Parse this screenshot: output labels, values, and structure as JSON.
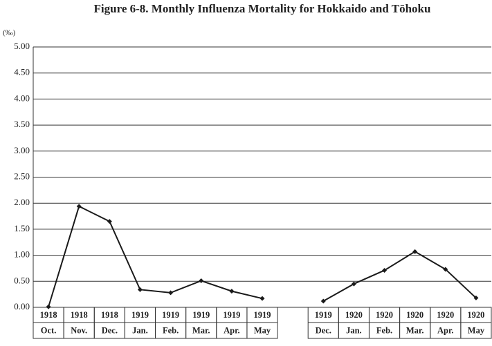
{
  "chart_data": {
    "type": "line",
    "title": "Figure 6-8. Monthly Influenza Mortality for Hokkaido and Tōhoku",
    "y_unit": "(‰)",
    "years": [
      "1918",
      "1918",
      "1918",
      "1919",
      "1919",
      "1919",
      "1919",
      "1919",
      null,
      "1919",
      "1920",
      "1920",
      "1920",
      "1920",
      "1920"
    ],
    "categories": [
      "Oct.",
      "Nov.",
      "Dec.",
      "Jan.",
      "Feb.",
      "Mar.",
      "Apr.",
      "May",
      null,
      "Dec.",
      "Jan.",
      "Feb.",
      "Mar.",
      "Apr.",
      "May"
    ],
    "values": [
      0.01,
      1.94,
      1.65,
      0.34,
      0.28,
      0.51,
      0.31,
      0.17,
      null,
      0.12,
      0.45,
      0.71,
      1.07,
      0.73,
      0.18
    ],
    "color": "#1a1a1a",
    "ylim": [
      0,
      5
    ],
    "yticks": [
      {
        "value": 0,
        "label": "0.00"
      },
      {
        "value": 0.5,
        "label": "0.50"
      },
      {
        "value": 1,
        "label": "1.00"
      },
      {
        "value": 1.5,
        "label": "1.50"
      },
      {
        "value": 2,
        "label": "2.00"
      },
      {
        "value": 2.5,
        "label": "2.50"
      },
      {
        "value": 3,
        "label": "3.00"
      },
      {
        "value": 3.5,
        "label": "3.50"
      },
      {
        "value": 4,
        "label": "4.00"
      },
      {
        "value": 4.5,
        "label": "4.50"
      },
      {
        "value": 5,
        "label": "5.00"
      }
    ],
    "grid": true
  }
}
